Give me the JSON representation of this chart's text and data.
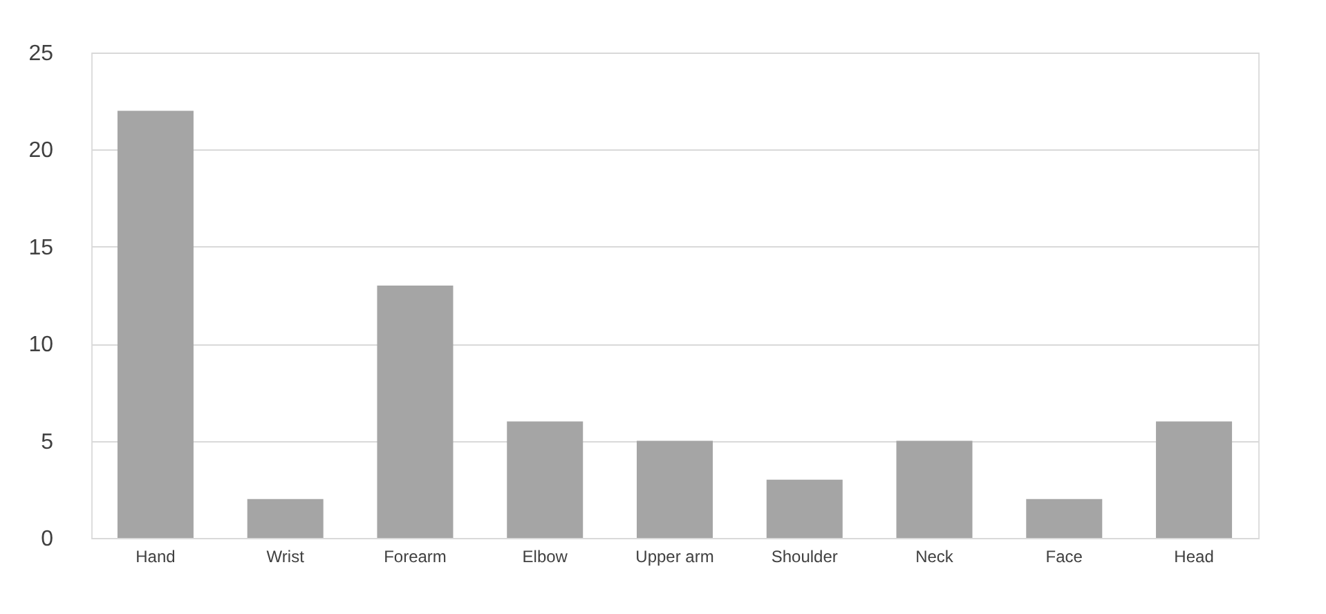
{
  "chart_data": {
    "type": "bar",
    "categories": [
      "Hand",
      "Wrist",
      "Forearm",
      "Elbow",
      "Upper arm",
      "Shoulder",
      "Neck",
      "Face",
      "Head"
    ],
    "values": [
      22,
      2,
      13,
      6,
      5,
      3,
      5,
      2,
      6
    ],
    "color": "#a5a5a5",
    "ylim": [
      0,
      25
    ],
    "yticks": [
      0,
      5,
      10,
      15,
      20,
      25
    ],
    "grid": "y"
  }
}
